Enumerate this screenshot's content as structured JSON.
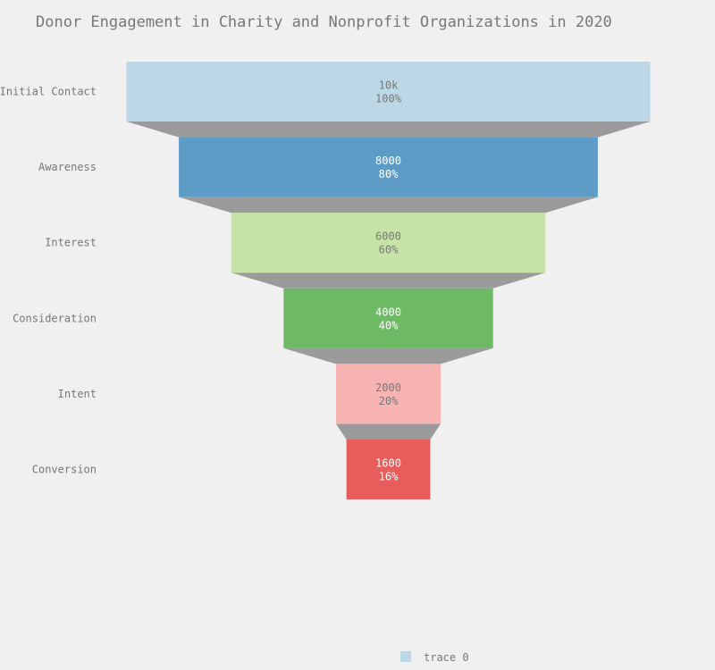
{
  "chart_data": {
    "type": "funnel",
    "title": "Donor Engagement in Charity and Nonprofit Organizations in 2020",
    "categories": [
      "Initial Contact",
      "Awareness",
      "Interest",
      "Consideration",
      "Intent",
      "Conversion"
    ],
    "values": [
      10000,
      8000,
      6000,
      4000,
      2000,
      1600
    ],
    "value_labels": [
      "10k",
      "8000",
      "6000",
      "4000",
      "2000",
      "1600"
    ],
    "percent_labels": [
      "100%",
      "80%",
      "60%",
      "40%",
      "20%",
      "16%"
    ],
    "series": [
      {
        "name": "trace 0",
        "values": [
          10000,
          8000,
          6000,
          4000,
          2000,
          1600
        ]
      }
    ],
    "colors": [
      "#bcd8e6",
      "#5e9cc8",
      "#c5e4a6",
      "#6db964",
      "#f8b4b2",
      "#e85c5c"
    ],
    "label_colors": [
      "#777777",
      "#ffffff",
      "#777777",
      "#ffffff",
      "#777777",
      "#ffffff"
    ],
    "connector_color": "#9b9b9b",
    "legend_position": "bottom-center"
  }
}
